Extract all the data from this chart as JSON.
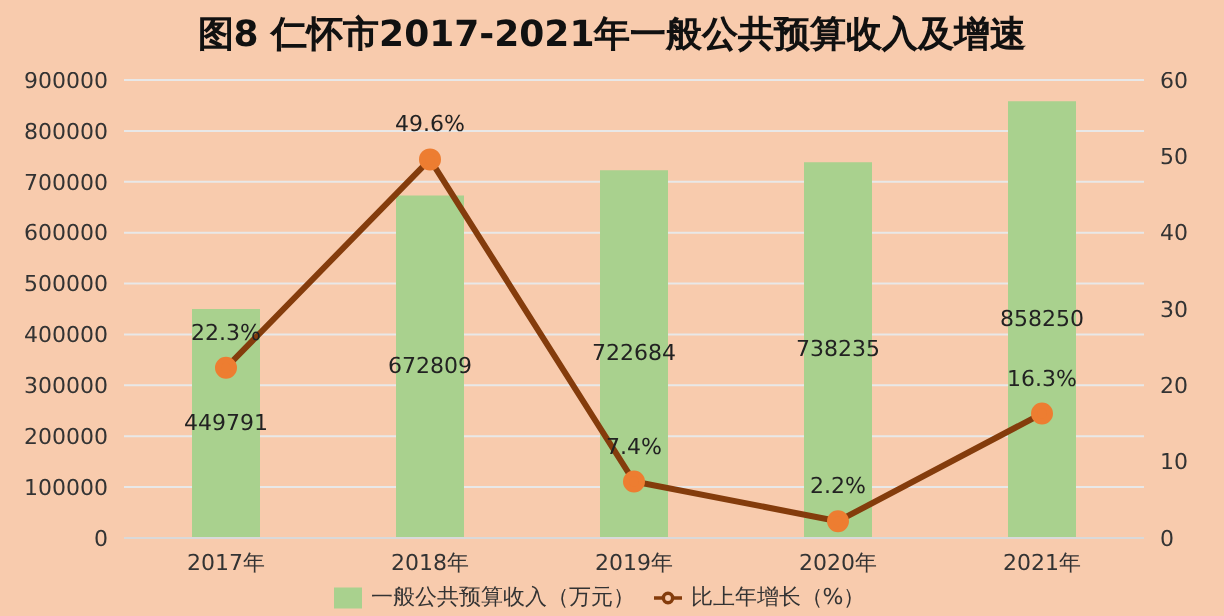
{
  "chart_data": {
    "type": "bar",
    "title": "图8  仁怀市2017-2021年一般公共预算收入及增速",
    "categories": [
      "2017年",
      "2018年",
      "2019年",
      "2020年",
      "2021年"
    ],
    "series": [
      {
        "name": "一般公共预算收入（万元）",
        "color": "#a9d18e",
        "values": [
          449791,
          672809,
          722684,
          738235,
          858250
        ],
        "value_labels": [
          "449791",
          "672809",
          "722684",
          "738235",
          "858250"
        ]
      },
      {
        "name": "比上年增长（%）",
        "type": "line",
        "axis": "y2",
        "color": "#843c0c",
        "marker": "circle",
        "values": [
          22.3,
          49.6,
          7.4,
          2.2,
          16.3
        ],
        "value_labels": [
          "22.3%",
          "49.6%",
          "7.4%",
          "2.2%",
          "16.3%"
        ]
      }
    ],
    "ylim": [
      0,
      900000
    ],
    "yticks": [
      0,
      100000,
      200000,
      300000,
      400000,
      500000,
      600000,
      700000,
      800000,
      900000
    ],
    "y2lim": [
      0,
      60
    ],
    "y2ticks": [
      0,
      10,
      20,
      30,
      40,
      50,
      60
    ],
    "grid": "y",
    "legend": "bottom"
  }
}
